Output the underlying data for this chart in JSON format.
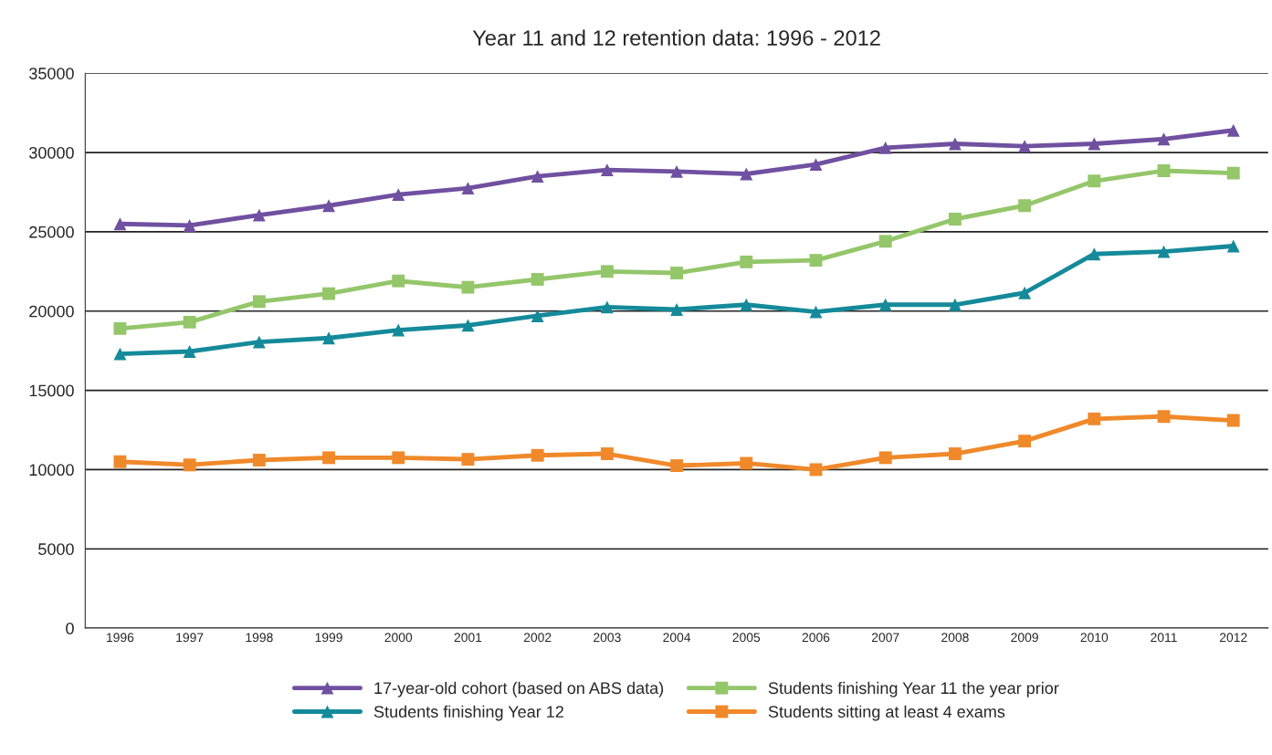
{
  "chart_data": {
    "type": "line",
    "title": "Year 11 and 12 retention data: 1996 - 2012",
    "categories": [
      "1996",
      "1997",
      "1998",
      "1999",
      "2000",
      "2001",
      "2002",
      "2003",
      "2004",
      "2005",
      "2006",
      "2007",
      "2008",
      "2009",
      "2010",
      "2011",
      "2012"
    ],
    "ylim": [
      0,
      35000
    ],
    "yticks": [
      0,
      5000,
      10000,
      15000,
      20000,
      25000,
      30000,
      35000
    ],
    "grid": "y",
    "legend": "bottom",
    "series": [
      {
        "name": "17-year-old cohort (based on ABS data)",
        "color": "#7050a0",
        "marker": "triangle",
        "values": [
          25500,
          25400,
          26050,
          26650,
          27350,
          27750,
          28500,
          28900,
          28800,
          28650,
          29250,
          30300,
          30550,
          30400,
          30550,
          30850,
          31400
        ]
      },
      {
        "name": "Students finishing Year 11 the year prior",
        "color": "#94c66a",
        "marker": "square",
        "values": [
          18900,
          19300,
          20600,
          21100,
          21900,
          21500,
          22000,
          22500,
          22400,
          23100,
          23200,
          24400,
          25800,
          26650,
          28200,
          28850,
          28700
        ]
      },
      {
        "name": "Students finishing Year 12",
        "color": "#148a9a",
        "marker": "triangle",
        "values": [
          17300,
          17450,
          18050,
          18300,
          18800,
          19100,
          19700,
          20250,
          20100,
          20400,
          19950,
          20400,
          20400,
          21150,
          23600,
          23750,
          24100
        ]
      },
      {
        "name": "Students sitting at least 4 exams",
        "color": "#f0892a",
        "marker": "square",
        "values": [
          10500,
          10300,
          10600,
          10750,
          10750,
          10650,
          10900,
          11000,
          10250,
          10400,
          10000,
          10750,
          11000,
          11800,
          13200,
          13350,
          13100
        ]
      }
    ]
  }
}
